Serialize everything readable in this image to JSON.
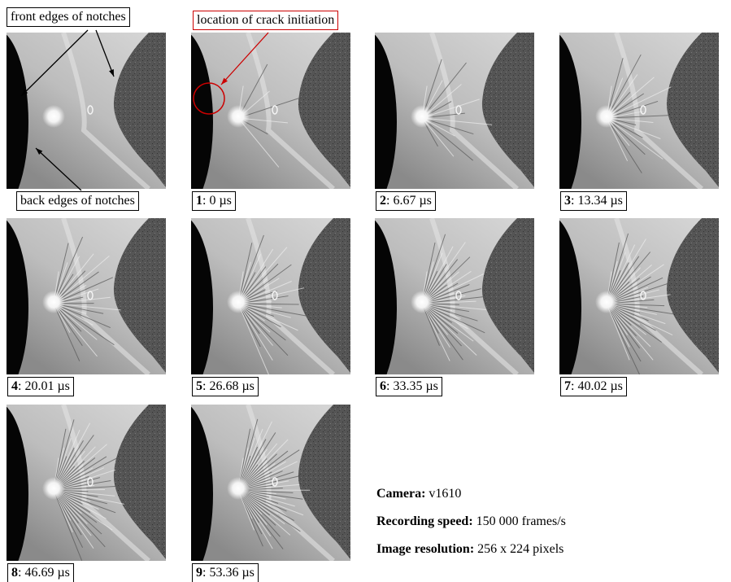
{
  "annotations": {
    "front_edges": "front edges of notches",
    "crack_initiation": "location of crack initiation",
    "back_edges": "back edges of notches"
  },
  "frames": [
    {
      "number": "1",
      "time": ": 0 µs"
    },
    {
      "number": "2",
      "time": ": 6.67 µs"
    },
    {
      "number": "3",
      "time": ": 13.34 µs"
    },
    {
      "number": "4",
      "time": ": 20.01 µs"
    },
    {
      "number": "5",
      "time": ": 26.68 µs"
    },
    {
      "number": "6",
      "time": ": 33.35 µs"
    },
    {
      "number": "7",
      "time": ": 40.02 µs"
    },
    {
      "number": "8",
      "time": ": 46.69 µs"
    },
    {
      "number": "9",
      "time": ": 53.36 µs"
    }
  ],
  "camera_info": [
    {
      "label": "Camera:",
      "value": "v1610"
    },
    {
      "label": "Recording speed:",
      "value": "150 000 frames/s"
    },
    {
      "label": "Image resolution:",
      "value": "256 x 224 pixels"
    }
  ]
}
